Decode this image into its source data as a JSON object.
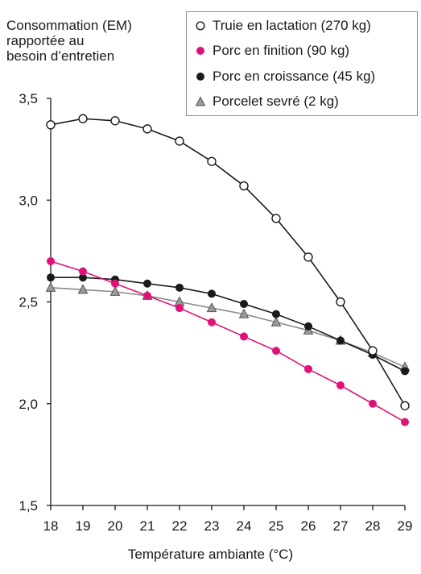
{
  "chart_data": {
    "type": "line",
    "ylabel_lines": [
      "Consommation (EM)",
      "rapportée au",
      "besoin d’entretien"
    ],
    "xlabel": "Température ambiante (°C)",
    "x": [
      18,
      19,
      20,
      21,
      22,
      23,
      24,
      25,
      26,
      27,
      28,
      29
    ],
    "xlim": [
      18,
      29
    ],
    "ylim": [
      1.5,
      3.5
    ],
    "yticks": [
      "1,5",
      "2,0",
      "2,5",
      "3,0",
      "3,5"
    ],
    "ytick_values": [
      1.5,
      2.0,
      2.5,
      3.0,
      3.5
    ],
    "grid": false,
    "legend_position": "top-right",
    "series": [
      {
        "name": "Truie en lactation (270 kg)",
        "marker": "open-circle",
        "color": "#1a1a1a",
        "values": [
          3.37,
          3.4,
          3.39,
          3.35,
          3.29,
          3.19,
          3.07,
          2.91,
          2.72,
          2.5,
          2.26,
          1.99
        ]
      },
      {
        "name": "Porc en finition (90 kg)",
        "marker": "filled-circle",
        "color": "#e0127a",
        "values": [
          2.7,
          2.65,
          2.59,
          2.53,
          2.47,
          2.4,
          2.33,
          2.26,
          2.17,
          2.09,
          2.0,
          1.91
        ]
      },
      {
        "name": "Porc en croissance (45 kg)",
        "marker": "filled-circle",
        "color": "#1a1a1a",
        "values": [
          2.62,
          2.62,
          2.61,
          2.59,
          2.57,
          2.54,
          2.49,
          2.44,
          2.38,
          2.31,
          2.24,
          2.16
        ]
      },
      {
        "name": "Porcelet sevré (2 kg)",
        "marker": "triangle",
        "color": "#7a7a7a",
        "values": [
          2.57,
          2.56,
          2.55,
          2.53,
          2.5,
          2.47,
          2.44,
          2.4,
          2.36,
          2.31,
          2.25,
          2.18
        ]
      }
    ]
  }
}
